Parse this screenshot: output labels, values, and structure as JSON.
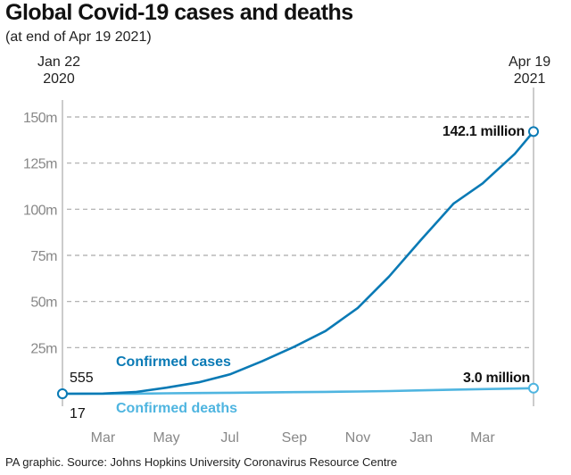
{
  "title": "Global Covid-19 cases and deaths",
  "subtitle": "(at end of Apr 19 2021)",
  "source": "PA graphic. Source: Johns Hopkins University Coronavirus Resource Centre",
  "start_label": {
    "line1": "Jan 22",
    "line2": "2020"
  },
  "end_label": {
    "line1": "Apr 19",
    "line2": "2021"
  },
  "chart_data": {
    "type": "line",
    "title": "Global Covid-19 cases and deaths",
    "ylabel": "",
    "xlabel": "",
    "ylim": [
      0,
      150
    ],
    "y_ticks": [
      {
        "value": 25,
        "label": "25m"
      },
      {
        "value": 50,
        "label": "50m"
      },
      {
        "value": 75,
        "label": "75m"
      },
      {
        "value": 100,
        "label": "100m"
      },
      {
        "value": 125,
        "label": "125m"
      },
      {
        "value": 150,
        "label": "150m"
      }
    ],
    "x_range": [
      "2020-01-22",
      "2021-04-19"
    ],
    "x_ticks": [
      {
        "date": "2020-03-01",
        "label": "Mar"
      },
      {
        "date": "2020-05-01",
        "label": "May"
      },
      {
        "date": "2020-07-01",
        "label": "Jul"
      },
      {
        "date": "2020-09-01",
        "label": "Sep"
      },
      {
        "date": "2020-11-01",
        "label": "Nov"
      },
      {
        "date": "2021-01-01",
        "label": "Jan"
      },
      {
        "date": "2021-03-01",
        "label": "Mar"
      }
    ],
    "grid": true,
    "series": [
      {
        "name": "Confirmed cases",
        "color": "#0a7ab5",
        "start_label": "555",
        "end_label": "142.1 million",
        "points": [
          [
            "2020-01-22",
            0.000555
          ],
          [
            "2020-03-01",
            0.09
          ],
          [
            "2020-04-01",
            0.9
          ],
          [
            "2020-05-01",
            3.3
          ],
          [
            "2020-06-01",
            6.2
          ],
          [
            "2020-07-01",
            10.5
          ],
          [
            "2020-08-01",
            17.6
          ],
          [
            "2020-09-01",
            25.5
          ],
          [
            "2020-10-01",
            34
          ],
          [
            "2020-11-01",
            46.5
          ],
          [
            "2020-12-01",
            63.5
          ],
          [
            "2021-01-01",
            83.5
          ],
          [
            "2021-02-01",
            103
          ],
          [
            "2021-03-01",
            114
          ],
          [
            "2021-04-01",
            130
          ],
          [
            "2021-04-19",
            142.1
          ]
        ]
      },
      {
        "name": "Confirmed deaths",
        "color": "#4fb5e0",
        "start_label": "17",
        "end_label": "3.0 million",
        "points": [
          [
            "2020-01-22",
            1.7e-05
          ],
          [
            "2020-03-01",
            0.003
          ],
          [
            "2020-04-01",
            0.05
          ],
          [
            "2020-05-01",
            0.23
          ],
          [
            "2020-06-01",
            0.37
          ],
          [
            "2020-07-01",
            0.51
          ],
          [
            "2020-08-01",
            0.68
          ],
          [
            "2020-09-01",
            0.85
          ],
          [
            "2020-10-01",
            1.01
          ],
          [
            "2020-11-01",
            1.19
          ],
          [
            "2020-12-01",
            1.47
          ],
          [
            "2021-01-01",
            1.82
          ],
          [
            "2021-02-01",
            2.24
          ],
          [
            "2021-03-01",
            2.54
          ],
          [
            "2021-04-01",
            2.82
          ],
          [
            "2021-04-19",
            3.0
          ]
        ]
      }
    ]
  }
}
